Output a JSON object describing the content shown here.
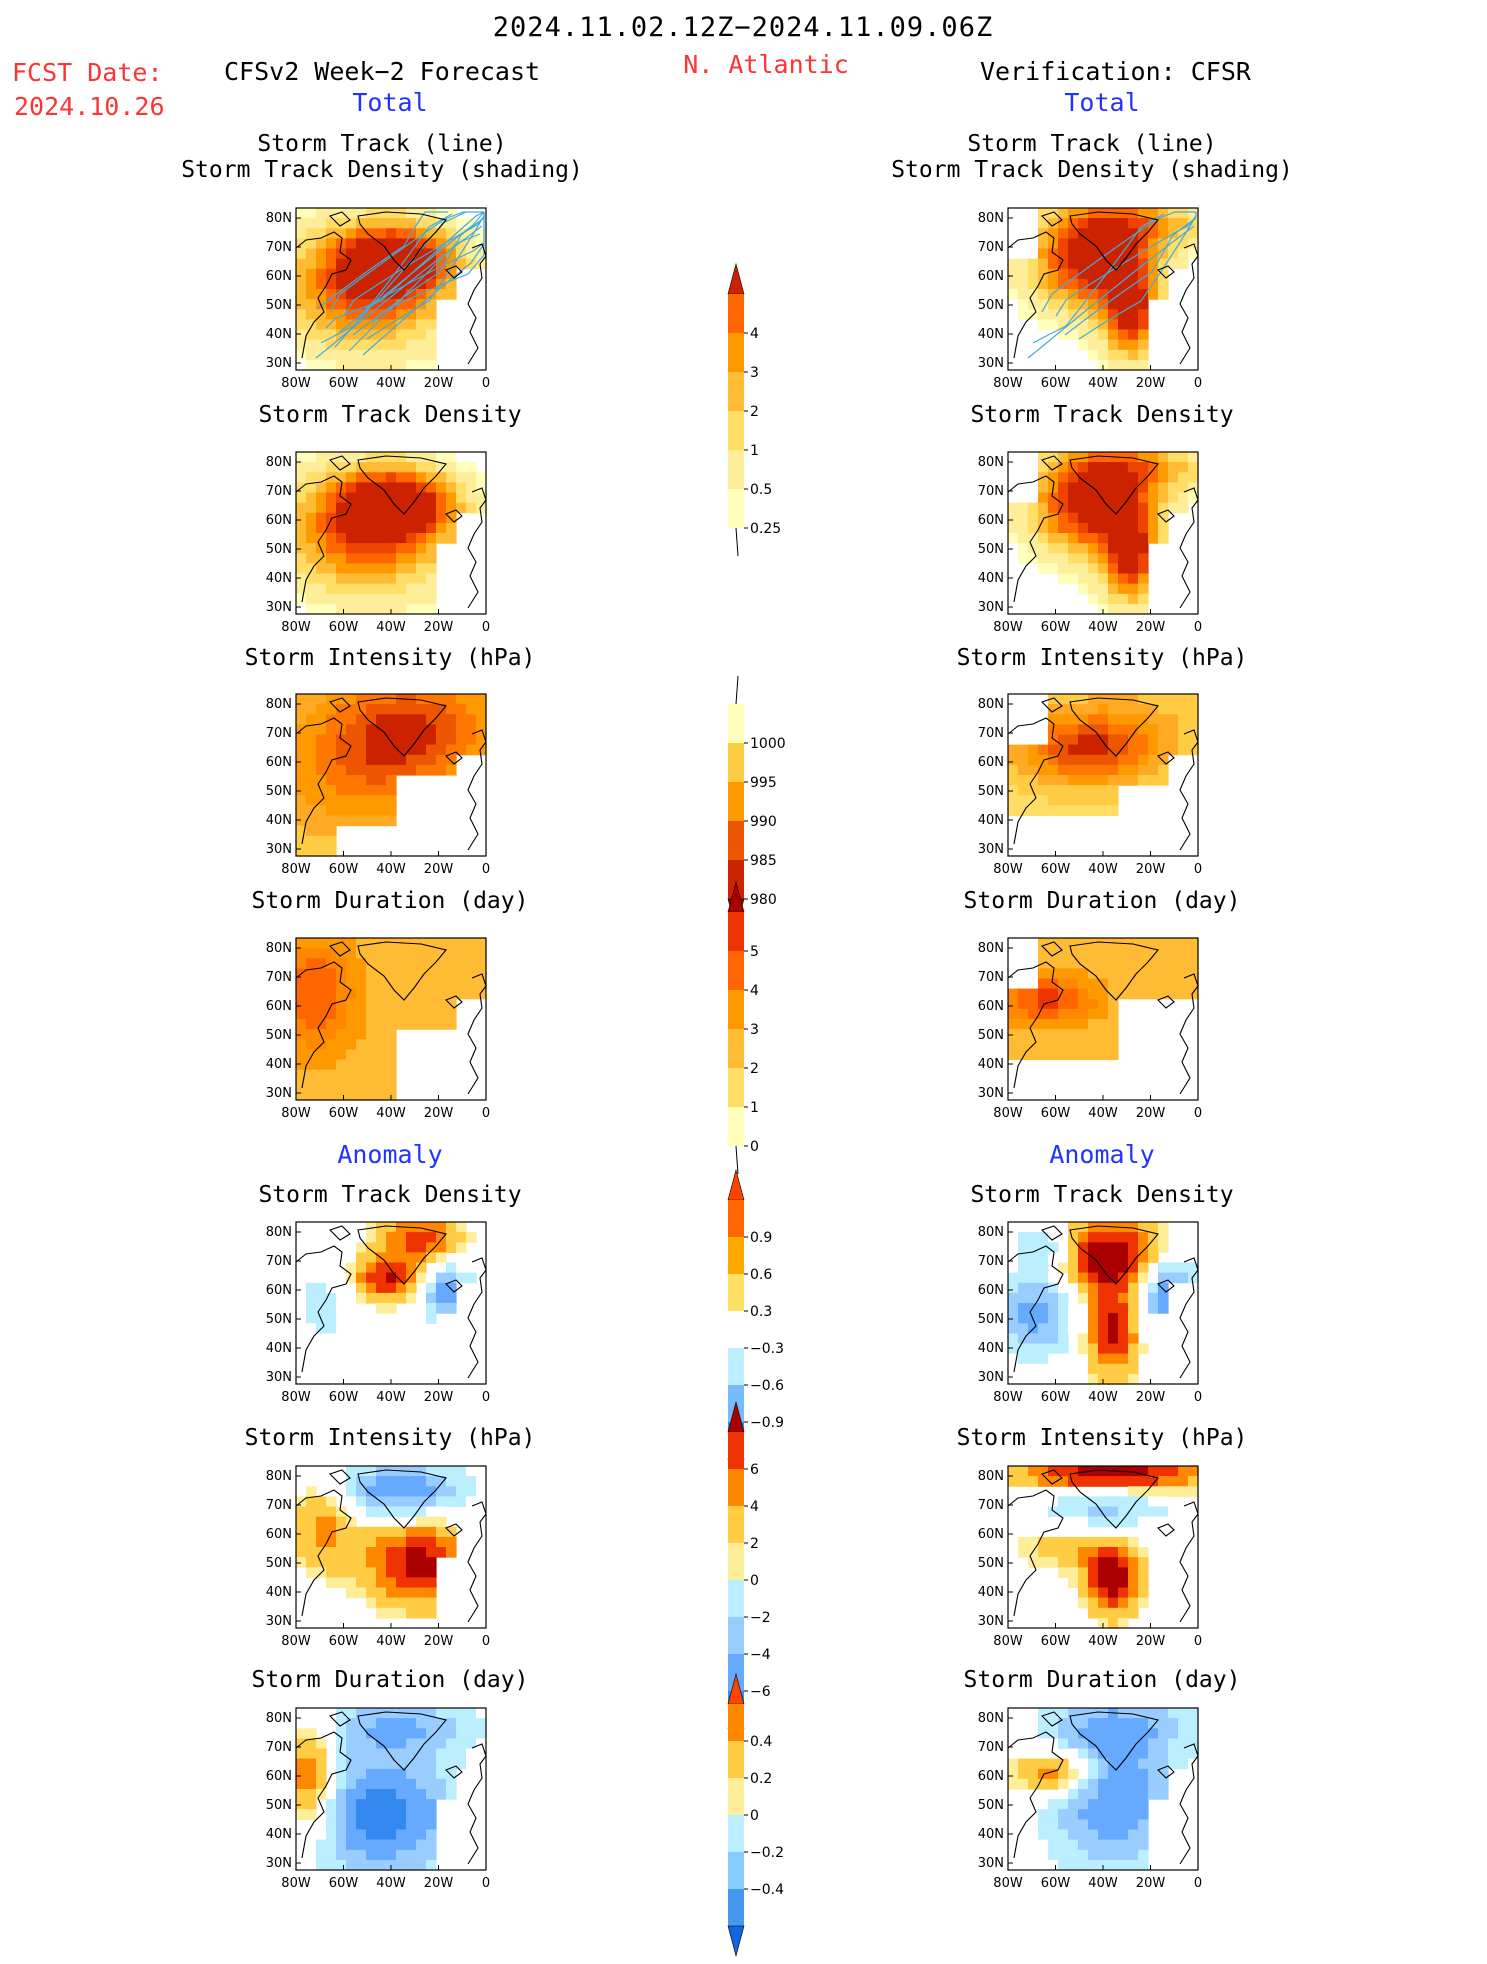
{
  "header": {
    "date_range": "2024.11.02.12Z−2024.11.09.06Z",
    "fcst_label": "FCST Date:",
    "fcst_date": "2024.10.26",
    "region": "N. Atlantic",
    "forecast_title": "CFSv2 Week−2 Forecast",
    "verification_title": "Verification: CFSR",
    "total_label": "Total",
    "anomaly_label": "Anomaly"
  },
  "panel_titles": {
    "track_line": "Storm Track (line)",
    "track_density_shading": "Storm Track Density (shading)",
    "track_density": "Storm Track Density",
    "intensity": "Storm Intensity (hPa)",
    "duration": "Storm Duration (day)"
  },
  "axes": {
    "lat_ticks": [
      "80N",
      "70N",
      "60N",
      "50N",
      "40N",
      "30N"
    ],
    "lon_ticks": [
      "80W",
      "60W",
      "40W",
      "20W",
      "0"
    ]
  },
  "colorbars": [
    {
      "name": "total-density-colorbar",
      "labels": [
        "4",
        "3",
        "2",
        "1",
        "0.5",
        "0.25"
      ],
      "colors": [
        "#ff6600",
        "#ff9900",
        "#ffbb33",
        "#ffdd66",
        "#ffee99",
        "#ffffbb"
      ],
      "top_cap": "#cc2200",
      "bottom_cap": null
    },
    {
      "name": "total-intensity-colorbar",
      "labels": [
        "1000",
        "995",
        "990",
        "985",
        "980"
      ],
      "colors": [
        "#ffffbb",
        "#ffcc44",
        "#ff9900",
        "#ee5500",
        "#cc2200"
      ],
      "top_cap": null,
      "bottom_cap": "#aa0000"
    },
    {
      "name": "total-duration-colorbar",
      "labels": [
        "5",
        "4",
        "3",
        "2",
        "1",
        "0"
      ],
      "colors": [
        "#ee3300",
        "#ff6600",
        "#ff9900",
        "#ffbb33",
        "#ffdd66",
        "#ffffbb"
      ],
      "top_cap": "#aa0000",
      "bottom_cap": null
    },
    {
      "name": "anomaly-density-colorbar",
      "labels": [
        "0.9",
        "0.6",
        "0.3",
        "−0.3",
        "−0.6",
        "−0.9"
      ],
      "colors": [
        "#ff6600",
        "#ffaa00",
        "#ffe066",
        "#ffffff",
        "#bbeeff",
        "#77bbff",
        "#3388ee"
      ],
      "top_cap": "#ff4400",
      "bottom_cap": "#1166dd"
    },
    {
      "name": "anomaly-intensity-colorbar",
      "labels": [
        "6",
        "4",
        "2",
        "0",
        "−2",
        "−4",
        "−6"
      ],
      "colors": [
        "#ee3300",
        "#ff8800",
        "#ffcc44",
        "#ffee99",
        "#bbeeff",
        "#99ccff",
        "#66aaff",
        "#3388ee"
      ],
      "top_cap": "#aa0000",
      "bottom_cap": "#1166dd"
    },
    {
      "name": "anomaly-duration-colorbar",
      "labels": [
        "0.4",
        "0.2",
        "0",
        "−0.2",
        "−0.4"
      ],
      "colors": [
        "#ff8800",
        "#ffcc44",
        "#ffee99",
        "#bbeeff",
        "#88ccff",
        "#4499ee"
      ],
      "top_cap": "#ff4400",
      "bottom_cap": "#1166dd"
    }
  ]
}
